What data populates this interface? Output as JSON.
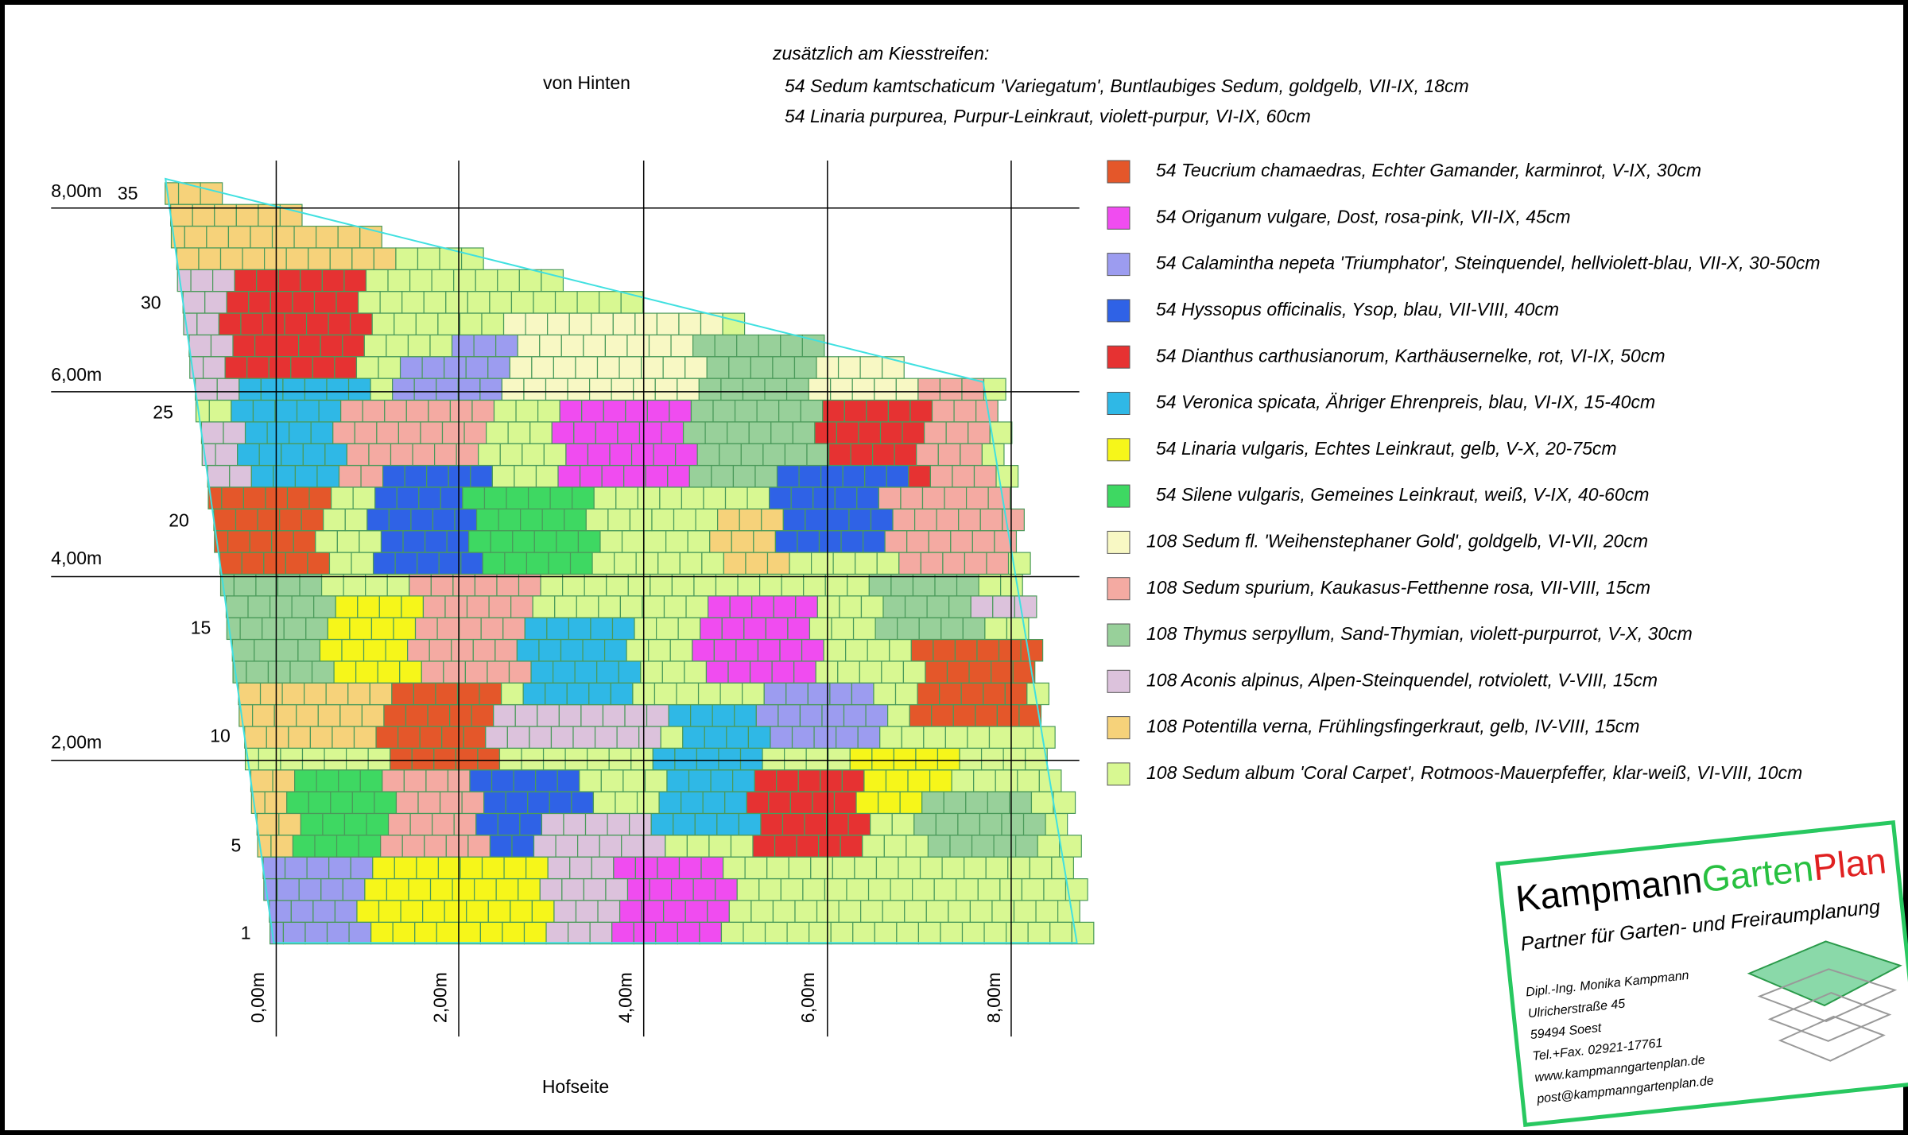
{
  "header": {
    "note_title": "zusätzlich am Kiesstreifen:",
    "back_side": "von Hinten",
    "extra": [
      "54 Sedum kamtschaticum 'Variegatum', Buntlaubiges Sedum, goldgelb, VII-IX, 18cm",
      "54 Linaria purpurea, Purpur-Leinkraut, violett-purpur, VI-IX, 60cm"
    ]
  },
  "axes": {
    "y_labels": [
      "8,00m",
      "6,00m",
      "4,00m",
      "2,00m"
    ],
    "x_labels": [
      "0,00m",
      "2,00m",
      "4,00m",
      "6,00m",
      "8,00m"
    ],
    "row_numbers": [
      "35",
      "30",
      "25",
      "20",
      "15",
      "10",
      "5",
      "1"
    ],
    "bottom_label": "Hofseite"
  },
  "legend": [
    {
      "text": "54 Teucrium chamaedras, Echter Gamander, karminrot, V-IX, 30cm",
      "color": "#e4572a"
    },
    {
      "text": "54 Origanum vulgare, Dost, rosa-pink, VII-IX, 45cm",
      "color": "#f04cf0"
    },
    {
      "text": "54 Calamintha nepeta 'Triumphator', Steinquendel, hellviolett-blau, VII-X, 30-50cm",
      "color": "#9c9cf0"
    },
    {
      "text": "54 Hyssopus officinalis, Ysop, blau, VII-VIII, 40cm",
      "color": "#2f62e6"
    },
    {
      "text": "54  Dianthus carthusianorum, Karthäusernelke, rot, VI-IX, 50cm",
      "color": "#e63232"
    },
    {
      "text": "54 Veronica spicata, Ähriger Ehrenpreis, blau, VI-IX, 15-40cm",
      "color": "#2fb8e6"
    },
    {
      "text": "54 Linaria vulgaris, Echtes Leinkraut, gelb, V-X, 20-75cm",
      "color": "#f6f61a"
    },
    {
      "text": "54 Silene vulgaris, Gemeines Leinkraut, weiß, V-IX, 40-60cm",
      "color": "#3ed862"
    },
    {
      "text": "108 Sedum fl. 'Weihenstephaner Gold', goldgelb, VI-VII, 20cm",
      "color": "#f8f8c4"
    },
    {
      "text": "108 Sedum spurium, Kaukasus-Fetthenne rosa, VII-VIII, 15cm",
      "color": "#f4aaa2"
    },
    {
      "text": "108 Thymus serpyllum, Sand-Thymian, violett-purpurrot, V-X, 30cm",
      "color": "#98d09a"
    },
    {
      "text": "108 Aconis alpinus, Alpen-Steinquendel, rotviolett, V-VIII, 15cm",
      "color": "#dcc2dc"
    },
    {
      "text": "108 Potentilla verna, Frühlingsfingerkraut, gelb, IV-VIII, 15cm",
      "color": "#f6d27a"
    },
    {
      "text": "108 Sedum album 'Coral Carpet', Rotmoos-Mauerpfeffer, klar-weiß, VI-VIII, 10cm",
      "color": "#d8f892"
    }
  ],
  "logo": {
    "brand_1": "Kampmann",
    "brand_2": "Garten",
    "brand_3": "Plan",
    "tagline": "Partner für Garten- und Freiraumplanung",
    "contact": [
      "Dipl.-Ing. Monika Kampmann",
      "Ulricherstraße 45",
      "59494 Soest",
      "Tel.+Fax. 02921-17761",
      "www.kampmanngartenplan.de",
      "post@kampmanngartenplan.de"
    ]
  }
}
